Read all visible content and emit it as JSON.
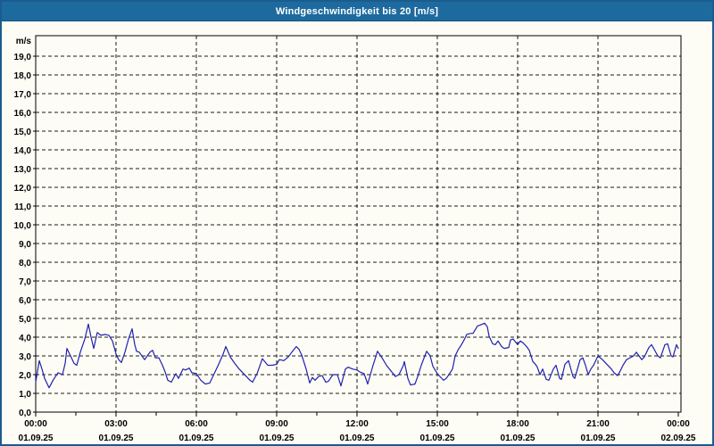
{
  "window": {
    "title": "Windgeschwindigkeit bis 20 [m/s]"
  },
  "colors": {
    "titlebar_bg": "#1d6a9e",
    "window_border": "#1a5c8e",
    "page_bg": "#fdfdf5",
    "grid": "#1a1a1a",
    "series": "#2020b0",
    "title_text": "#ffffff",
    "axis_text": "#000000"
  },
  "chart_data": {
    "type": "line",
    "title": "Windgeschwindigkeit bis 20 [m/s]",
    "ylabel": "m/s",
    "xlabel": "",
    "ylim": [
      0,
      20.1
    ],
    "grid": "dashed",
    "legend_position": "none",
    "y_axis": {
      "unit_label": "m/s",
      "tick_step": 1.0,
      "tick_labels": [
        "0,0",
        "1,0",
        "2,0",
        "3,0",
        "4,0",
        "5,0",
        "6,0",
        "7,0",
        "8,0",
        "9,0",
        "10,0",
        "11,0",
        "12,0",
        "13,0",
        "14,0",
        "15,0",
        "16,0",
        "17,0",
        "18,0",
        "19,0"
      ]
    },
    "x_axis": {
      "minor_tick_hours": 1.5,
      "major_tick_hours": 3,
      "ticks": [
        {
          "hour": 0,
          "time": "00:00",
          "date": "01.09.25"
        },
        {
          "hour": 3,
          "time": "03:00",
          "date": "01.09.25"
        },
        {
          "hour": 6,
          "time": "06:00",
          "date": "01.09.25"
        },
        {
          "hour": 9,
          "time": "09:00",
          "date": "01.09.25"
        },
        {
          "hour": 12,
          "time": "12:00",
          "date": "01.09.25"
        },
        {
          "hour": 15,
          "time": "15:00",
          "date": "01.09.25"
        },
        {
          "hour": 18,
          "time": "18:00",
          "date": "01.09.25"
        },
        {
          "hour": 21,
          "time": "21:00",
          "date": "01.09.25"
        },
        {
          "hour": 24,
          "time": "00:00",
          "date": "02.09.25"
        }
      ]
    },
    "series": [
      {
        "color": "#2020b0",
        "points_format": "[minutes_since_00:00, wind_speed_m_per_s]",
        "points": [
          [
            0,
            1.6
          ],
          [
            8,
            2.75
          ],
          [
            14,
            2.3
          ],
          [
            20,
            1.8
          ],
          [
            30,
            1.3
          ],
          [
            40,
            1.75
          ],
          [
            50,
            2.1
          ],
          [
            60,
            2.0
          ],
          [
            66,
            2.6
          ],
          [
            70,
            3.4
          ],
          [
            78,
            3.0
          ],
          [
            86,
            2.6
          ],
          [
            92,
            2.5
          ],
          [
            100,
            3.2
          ],
          [
            110,
            3.9
          ],
          [
            118,
            4.7
          ],
          [
            124,
            4.0
          ],
          [
            130,
            3.4
          ],
          [
            138,
            4.25
          ],
          [
            146,
            4.1
          ],
          [
            156,
            4.15
          ],
          [
            164,
            4.1
          ],
          [
            172,
            3.8
          ],
          [
            180,
            3.1
          ],
          [
            186,
            2.8
          ],
          [
            192,
            2.65
          ],
          [
            200,
            3.2
          ],
          [
            208,
            3.9
          ],
          [
            216,
            4.45
          ],
          [
            222,
            3.6
          ],
          [
            226,
            3.25
          ],
          [
            232,
            3.2
          ],
          [
            238,
            3.0
          ],
          [
            244,
            2.8
          ],
          [
            250,
            3.0
          ],
          [
            256,
            3.2
          ],
          [
            262,
            3.3
          ],
          [
            268,
            2.9
          ],
          [
            276,
            2.9
          ],
          [
            284,
            2.5
          ],
          [
            290,
            2.15
          ],
          [
            296,
            1.7
          ],
          [
            304,
            1.6
          ],
          [
            314,
            2.05
          ],
          [
            320,
            1.8
          ],
          [
            330,
            2.3
          ],
          [
            336,
            2.25
          ],
          [
            344,
            2.35
          ],
          [
            350,
            2.1
          ],
          [
            360,
            2.05
          ],
          [
            370,
            1.7
          ],
          [
            380,
            1.5
          ],
          [
            390,
            1.55
          ],
          [
            400,
            2.05
          ],
          [
            410,
            2.55
          ],
          [
            420,
            3.1
          ],
          [
            426,
            3.5
          ],
          [
            436,
            2.95
          ],
          [
            446,
            2.6
          ],
          [
            456,
            2.3
          ],
          [
            466,
            2.05
          ],
          [
            474,
            1.85
          ],
          [
            480,
            1.7
          ],
          [
            486,
            1.6
          ],
          [
            496,
            2.05
          ],
          [
            508,
            2.85
          ],
          [
            520,
            2.5
          ],
          [
            530,
            2.5
          ],
          [
            540,
            2.55
          ],
          [
            546,
            2.8
          ],
          [
            556,
            2.75
          ],
          [
            566,
            2.95
          ],
          [
            574,
            3.2
          ],
          [
            584,
            3.5
          ],
          [
            590,
            3.35
          ],
          [
            596,
            3.05
          ],
          [
            606,
            2.3
          ],
          [
            614,
            1.55
          ],
          [
            620,
            1.85
          ],
          [
            626,
            1.7
          ],
          [
            634,
            1.9
          ],
          [
            642,
            1.95
          ],
          [
            650,
            1.6
          ],
          [
            656,
            1.65
          ],
          [
            666,
            2.0
          ],
          [
            676,
            2.0
          ],
          [
            684,
            1.4
          ],
          [
            694,
            2.3
          ],
          [
            700,
            2.4
          ],
          [
            710,
            2.3
          ],
          [
            720,
            2.25
          ],
          [
            726,
            2.15
          ],
          [
            736,
            2.05
          ],
          [
            744,
            1.5
          ],
          [
            756,
            2.5
          ],
          [
            766,
            3.25
          ],
          [
            776,
            2.9
          ],
          [
            786,
            2.5
          ],
          [
            796,
            2.2
          ],
          [
            806,
            1.9
          ],
          [
            814,
            2.0
          ],
          [
            824,
            2.5
          ],
          [
            826,
            2.7
          ],
          [
            834,
            1.8
          ],
          [
            840,
            1.45
          ],
          [
            850,
            1.5
          ],
          [
            856,
            1.9
          ],
          [
            864,
            2.5
          ],
          [
            876,
            3.25
          ],
          [
            884,
            3.0
          ],
          [
            890,
            2.45
          ],
          [
            900,
            2.05
          ],
          [
            906,
            1.9
          ],
          [
            914,
            1.7
          ],
          [
            920,
            1.8
          ],
          [
            926,
            2.0
          ],
          [
            934,
            2.3
          ],
          [
            940,
            3.0
          ],
          [
            946,
            3.3
          ],
          [
            954,
            3.6
          ],
          [
            960,
            3.85
          ],
          [
            966,
            4.15
          ],
          [
            974,
            4.2
          ],
          [
            980,
            4.2
          ],
          [
            990,
            4.6
          ],
          [
            996,
            4.65
          ],
          [
            1006,
            4.75
          ],
          [
            1012,
            4.55
          ],
          [
            1016,
            4.05
          ],
          [
            1024,
            3.65
          ],
          [
            1030,
            3.6
          ],
          [
            1036,
            3.8
          ],
          [
            1044,
            3.5
          ],
          [
            1050,
            3.4
          ],
          [
            1060,
            3.45
          ],
          [
            1064,
            3.85
          ],
          [
            1070,
            3.9
          ],
          [
            1080,
            3.6
          ],
          [
            1086,
            3.8
          ],
          [
            1092,
            3.7
          ],
          [
            1100,
            3.5
          ],
          [
            1106,
            3.3
          ],
          [
            1114,
            2.7
          ],
          [
            1120,
            2.55
          ],
          [
            1124,
            2.4
          ],
          [
            1130,
            2.0
          ],
          [
            1136,
            2.3
          ],
          [
            1144,
            1.75
          ],
          [
            1150,
            1.7
          ],
          [
            1160,
            2.3
          ],
          [
            1166,
            2.5
          ],
          [
            1174,
            1.8
          ],
          [
            1178,
            1.75
          ],
          [
            1186,
            2.55
          ],
          [
            1194,
            2.75
          ],
          [
            1204,
            1.9
          ],
          [
            1208,
            1.8
          ],
          [
            1220,
            2.8
          ],
          [
            1226,
            2.9
          ],
          [
            1232,
            2.5
          ],
          [
            1238,
            2.0
          ],
          [
            1244,
            2.3
          ],
          [
            1250,
            2.5
          ],
          [
            1256,
            2.8
          ],
          [
            1260,
            3.0
          ],
          [
            1270,
            2.8
          ],
          [
            1280,
            2.55
          ],
          [
            1290,
            2.3
          ],
          [
            1296,
            2.1
          ],
          [
            1304,
            1.95
          ],
          [
            1310,
            2.2
          ],
          [
            1316,
            2.5
          ],
          [
            1324,
            2.8
          ],
          [
            1332,
            2.9
          ],
          [
            1340,
            3.0
          ],
          [
            1346,
            3.2
          ],
          [
            1352,
            3.0
          ],
          [
            1358,
            2.8
          ],
          [
            1364,
            2.95
          ],
          [
            1374,
            3.45
          ],
          [
            1380,
            3.6
          ],
          [
            1386,
            3.35
          ],
          [
            1394,
            3.0
          ],
          [
            1400,
            2.9
          ],
          [
            1410,
            3.6
          ],
          [
            1416,
            3.65
          ],
          [
            1424,
            3.0
          ],
          [
            1428,
            2.95
          ],
          [
            1436,
            3.6
          ],
          [
            1440,
            3.4
          ]
        ]
      }
    ]
  }
}
